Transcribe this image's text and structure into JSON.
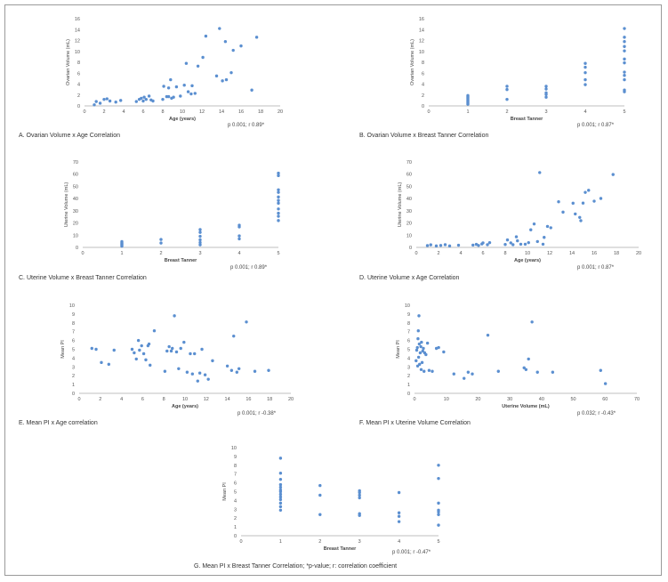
{
  "figure": {
    "footnote": "G. Mean PI x Breast Tanner Correlation; *p-value; r: correlation coefficient"
  },
  "style": {
    "point_color": "#5b8fd0",
    "axis_color": "#bfbfbf",
    "text_color": "#555555"
  },
  "chart_data": [
    {
      "id": "A",
      "type": "scatter",
      "caption": "A. Ovarian Volume x Age Correlation",
      "stat": "p 0.001; r 0.89*",
      "xlabel": "Age (years)",
      "ylabel": "Ovarian Volume (mL)",
      "xlim": [
        0,
        20
      ],
      "ylim": [
        0,
        16
      ],
      "xticks": [
        0,
        2,
        4,
        6,
        8,
        10,
        12,
        14,
        16,
        18,
        20
      ],
      "yticks": [
        0,
        2,
        4,
        6,
        8,
        10,
        12,
        14,
        16
      ],
      "points": [
        [
          1,
          0.2
        ],
        [
          1.2,
          0.8
        ],
        [
          1.6,
          0.5
        ],
        [
          2,
          1.2
        ],
        [
          2.3,
          1.3
        ],
        [
          2.6,
          0.9
        ],
        [
          3.2,
          0.7
        ],
        [
          3.7,
          1
        ],
        [
          5.3,
          0.8
        ],
        [
          5.6,
          1.2
        ],
        [
          5.8,
          1.4
        ],
        [
          6,
          0.9
        ],
        [
          6.1,
          1.6
        ],
        [
          6.3,
          1.2
        ],
        [
          6.6,
          1.8
        ],
        [
          6.8,
          1.1
        ],
        [
          7,
          0.9
        ],
        [
          8,
          1.2
        ],
        [
          8.1,
          3.6
        ],
        [
          8.4,
          1.7
        ],
        [
          8.6,
          3.3
        ],
        [
          8.8,
          4.8
        ],
        [
          8.9,
          1.4
        ],
        [
          9.1,
          1.6
        ],
        [
          9.4,
          3.5
        ],
        [
          9.8,
          1.8
        ],
        [
          10.2,
          3.8
        ],
        [
          10.4,
          7.8
        ],
        [
          10.6,
          2.6
        ],
        [
          10.9,
          2.2
        ],
        [
          11,
          3.7
        ],
        [
          11.3,
          2.3
        ],
        [
          11.6,
          7.3
        ],
        [
          12.1,
          8.9
        ],
        [
          12.4,
          12.8
        ],
        [
          13.5,
          5.5
        ],
        [
          13.8,
          14.2
        ],
        [
          14.1,
          4.6
        ],
        [
          14.4,
          11.8
        ],
        [
          15,
          6.1
        ],
        [
          15.2,
          10.2
        ],
        [
          16,
          11
        ],
        [
          17.1,
          2.9
        ],
        [
          17.6,
          12.6
        ],
        [
          14.5,
          4.8
        ],
        [
          8.6,
          1.7
        ]
      ]
    },
    {
      "id": "B",
      "type": "scatter",
      "caption": "B. Ovarian Volume x Breast Tanner Correlation",
      "stat": "p 0.001; r 0.87*",
      "xlabel": "Breast Tanner",
      "ylabel": "Ovarian Volume (mL)",
      "xlim": [
        0,
        5
      ],
      "ylim": [
        0,
        16
      ],
      "xticks": [
        0,
        1,
        2,
        3,
        4,
        5
      ],
      "yticks": [
        0,
        2,
        4,
        6,
        8,
        10,
        12,
        14,
        16
      ],
      "points": [
        [
          1,
          0.3
        ],
        [
          1,
          0.5
        ],
        [
          1,
          0.7
        ],
        [
          1,
          0.9
        ],
        [
          1,
          1.1
        ],
        [
          1,
          1.3
        ],
        [
          1,
          1.5
        ],
        [
          1,
          1.7
        ],
        [
          1,
          1.9
        ],
        [
          2,
          1.2
        ],
        [
          2,
          3
        ],
        [
          2,
          3.6
        ],
        [
          3,
          1.6
        ],
        [
          3,
          2.1
        ],
        [
          3,
          2.4
        ],
        [
          3,
          3.1
        ],
        [
          3,
          3.6
        ],
        [
          4,
          3.9
        ],
        [
          4,
          4.8
        ],
        [
          4,
          6.1
        ],
        [
          4,
          7.1
        ],
        [
          4,
          7.8
        ],
        [
          5,
          2.6
        ],
        [
          5,
          2.9
        ],
        [
          5,
          4.8
        ],
        [
          5,
          5.6
        ],
        [
          5,
          6.2
        ],
        [
          5,
          7.9
        ],
        [
          5,
          8.6
        ],
        [
          5,
          10.1
        ],
        [
          5,
          10.9
        ],
        [
          5,
          11.8
        ],
        [
          5,
          12.6
        ],
        [
          5,
          14.2
        ]
      ]
    },
    {
      "id": "C",
      "type": "scatter",
      "caption": "C. Uterine Volume x Breast Tanner Correlation",
      "stat": "p 0.001; r 0.89*",
      "xlabel": "Breast Tanner",
      "ylabel": "Uterine Volume (mL)",
      "xlim": [
        0,
        5
      ],
      "ylim": [
        0,
        70
      ],
      "xticks": [
        0,
        1,
        2,
        3,
        4,
        5
      ],
      "yticks": [
        0,
        10,
        20,
        30,
        40,
        50,
        60,
        70
      ],
      "points": [
        [
          1,
          1
        ],
        [
          1,
          1.8
        ],
        [
          1,
          2.5
        ],
        [
          1,
          3.2
        ],
        [
          1,
          4
        ],
        [
          1,
          4.8
        ],
        [
          2,
          3.6
        ],
        [
          2,
          6.5
        ],
        [
          3,
          2.1
        ],
        [
          3,
          4
        ],
        [
          3,
          6.2
        ],
        [
          3,
          9.1
        ],
        [
          3,
          12.3
        ],
        [
          3,
          14.6
        ],
        [
          4,
          7
        ],
        [
          4,
          9.4
        ],
        [
          4,
          16.8
        ],
        [
          4,
          18.2
        ],
        [
          5,
          22
        ],
        [
          5,
          25.5
        ],
        [
          5,
          28
        ],
        [
          5,
          31.5
        ],
        [
          5,
          36.2
        ],
        [
          5,
          38.5
        ],
        [
          5,
          41.3
        ],
        [
          5,
          45.1
        ],
        [
          5,
          47.2
        ],
        [
          5,
          58.8
        ],
        [
          5,
          60.8
        ]
      ]
    },
    {
      "id": "D",
      "type": "scatter",
      "caption": "D. Uterine Volume x Age Correlation",
      "stat": "p 0.001; r 0.87*",
      "xlabel": "Age (years)",
      "ylabel": "Uterine Volume (mL)",
      "xlim": [
        0,
        20
      ],
      "ylim": [
        0,
        70
      ],
      "xticks": [
        0,
        2,
        4,
        6,
        8,
        10,
        12,
        14,
        16,
        18,
        20
      ],
      "yticks": [
        0,
        10,
        20,
        30,
        40,
        50,
        60,
        70
      ],
      "points": [
        [
          1,
          1.5
        ],
        [
          1.3,
          2.1
        ],
        [
          1.8,
          1.2
        ],
        [
          2.2,
          1.6
        ],
        [
          2.6,
          2.2
        ],
        [
          3,
          1.2
        ],
        [
          3.8,
          1.8
        ],
        [
          5.1,
          1.9
        ],
        [
          5.4,
          2.5
        ],
        [
          5.6,
          1.6
        ],
        [
          5.9,
          2.8
        ],
        [
          6,
          3.7
        ],
        [
          6.4,
          2.2
        ],
        [
          6.6,
          3.9
        ],
        [
          8,
          2.4
        ],
        [
          8.2,
          6.1
        ],
        [
          8.5,
          3.7
        ],
        [
          8.7,
          2.2
        ],
        [
          9,
          8.7
        ],
        [
          9.1,
          5.4
        ],
        [
          9.4,
          2.6
        ],
        [
          9.8,
          2.6
        ],
        [
          10.1,
          3.9
        ],
        [
          10.3,
          14.4
        ],
        [
          10.6,
          19.2
        ],
        [
          10.9,
          4.8
        ],
        [
          11.1,
          61.3
        ],
        [
          11.4,
          2.6
        ],
        [
          11.5,
          8.2
        ],
        [
          11.8,
          17.2
        ],
        [
          12.1,
          16.1
        ],
        [
          12.8,
          37.4
        ],
        [
          13.2,
          28.9
        ],
        [
          14.1,
          36.2
        ],
        [
          14.3,
          27.4
        ],
        [
          14.7,
          24.6
        ],
        [
          14.8,
          21.9
        ],
        [
          15,
          36.3
        ],
        [
          15.2,
          45.1
        ],
        [
          15.5,
          46.8
        ],
        [
          16,
          37.9
        ],
        [
          16.6,
          40.1
        ],
        [
          17.7,
          59.7
        ]
      ]
    },
    {
      "id": "E",
      "type": "scatter",
      "caption": "E. Mean PI x Age correlation",
      "stat": "p 0.001; r -0.38*",
      "xlabel": "Age (years)",
      "ylabel": "Mean PI",
      "xlim": [
        0,
        20
      ],
      "ylim": [
        0,
        10
      ],
      "xticks": [
        0,
        2,
        4,
        6,
        8,
        10,
        12,
        14,
        16,
        18,
        20
      ],
      "yticks": [
        0,
        1,
        2,
        3,
        4,
        5,
        6,
        7,
        8,
        9,
        10
      ],
      "points": [
        [
          1.2,
          5.1
        ],
        [
          1.6,
          5
        ],
        [
          2.1,
          3.5
        ],
        [
          2.8,
          3.3
        ],
        [
          3.3,
          4.9
        ],
        [
          5,
          5
        ],
        [
          5.2,
          4.6
        ],
        [
          5.4,
          3.9
        ],
        [
          5.6,
          6
        ],
        [
          5.7,
          4.9
        ],
        [
          5.9,
          5.4
        ],
        [
          6.1,
          4.5
        ],
        [
          6.3,
          3.8
        ],
        [
          6.5,
          5.4
        ],
        [
          6.6,
          5.6
        ],
        [
          6.7,
          3.2
        ],
        [
          7.1,
          7.1
        ],
        [
          8.1,
          2.5
        ],
        [
          8.3,
          4.8
        ],
        [
          8.5,
          5.3
        ],
        [
          8.7,
          4.8
        ],
        [
          8.8,
          5.1
        ],
        [
          9,
          8.8
        ],
        [
          9.2,
          4.7
        ],
        [
          9.4,
          2.8
        ],
        [
          9.6,
          5.1
        ],
        [
          9.9,
          5.8
        ],
        [
          10.2,
          2.4
        ],
        [
          10.5,
          4.5
        ],
        [
          10.7,
          2.2
        ],
        [
          10.9,
          4.5
        ],
        [
          11.2,
          1.4
        ],
        [
          11.4,
          2.3
        ],
        [
          11.6,
          5
        ],
        [
          11.9,
          2.1
        ],
        [
          12.2,
          1.6
        ],
        [
          12.6,
          3.7
        ],
        [
          14,
          3.1
        ],
        [
          14.4,
          2.6
        ],
        [
          14.6,
          6.5
        ],
        [
          14.9,
          2.4
        ],
        [
          15.1,
          2.8
        ],
        [
          15.8,
          8.1
        ],
        [
          16.6,
          2.5
        ],
        [
          17.9,
          2.6
        ]
      ]
    },
    {
      "id": "F",
      "type": "scatter",
      "caption": "F. Mean PI x Uterine Volume Correlation",
      "stat": "p 0.032; r -0.43*",
      "xlabel": "Uterine Volume (mL)",
      "ylabel": "Mean PI",
      "xlim": [
        0,
        70
      ],
      "ylim": [
        0,
        10
      ],
      "xticks": [
        0,
        10,
        20,
        30,
        40,
        50,
        60,
        70
      ],
      "yticks": [
        0,
        1,
        2,
        3,
        4,
        5,
        6,
        7,
        8,
        9,
        10
      ],
      "points": [
        [
          0.5,
          3.7
        ],
        [
          0.7,
          4.9
        ],
        [
          0.9,
          5.2
        ],
        [
          1,
          3.1
        ],
        [
          1.1,
          6.2
        ],
        [
          1.2,
          7.1
        ],
        [
          1.3,
          4.1
        ],
        [
          1.4,
          8.8
        ],
        [
          1.5,
          5.6
        ],
        [
          1.6,
          3.3
        ],
        [
          1.8,
          4.6
        ],
        [
          2,
          5.3
        ],
        [
          2.1,
          2.7
        ],
        [
          2.2,
          5.8
        ],
        [
          2.4,
          3.5
        ],
        [
          2.6,
          4.8
        ],
        [
          2.8,
          5.1
        ],
        [
          3,
          2.5
        ],
        [
          3.2,
          4.6
        ],
        [
          3.6,
          4.4
        ],
        [
          4.1,
          5.7
        ],
        [
          4.6,
          2.6
        ],
        [
          5.6,
          2.5
        ],
        [
          6.9,
          5.1
        ],
        [
          7.6,
          5.2
        ],
        [
          9.2,
          4.7
        ],
        [
          12.4,
          2.2
        ],
        [
          15.6,
          1.7
        ],
        [
          16.9,
          2.4
        ],
        [
          18.2,
          2.2
        ],
        [
          23.1,
          6.6
        ],
        [
          26.4,
          2.5
        ],
        [
          34.5,
          2.9
        ],
        [
          35.1,
          2.7
        ],
        [
          35.9,
          3.9
        ],
        [
          37,
          8.1
        ],
        [
          38.7,
          2.4
        ],
        [
          43.5,
          2.4
        ],
        [
          58.6,
          2.6
        ],
        [
          60.1,
          1.1
        ]
      ]
    },
    {
      "id": "G",
      "type": "scatter",
      "caption": "",
      "stat": "p 0.001; r -0.47*",
      "xlabel": "Breast Tanner",
      "ylabel": "Mean PI",
      "xlim": [
        0,
        5
      ],
      "ylim": [
        0,
        10
      ],
      "xticks": [
        0,
        1,
        2,
        3,
        4,
        5
      ],
      "yticks": [
        0,
        1,
        2,
        3,
        4,
        5,
        6,
        7,
        8,
        9,
        10
      ],
      "points": [
        [
          1,
          2.9
        ],
        [
          1,
          3.3
        ],
        [
          1,
          3.7
        ],
        [
          1,
          4.1
        ],
        [
          1,
          4.4
        ],
        [
          1,
          4.7
        ],
        [
          1,
          5
        ],
        [
          1,
          5.2
        ],
        [
          1,
          5.5
        ],
        [
          1,
          5.8
        ],
        [
          1,
          6.4
        ],
        [
          1,
          7.1
        ],
        [
          1,
          8.8
        ],
        [
          2,
          2.4
        ],
        [
          2,
          4.6
        ],
        [
          2,
          5.7
        ],
        [
          3,
          2.3
        ],
        [
          3,
          2.5
        ],
        [
          3,
          4.3
        ],
        [
          3,
          4.6
        ],
        [
          3,
          4.9
        ],
        [
          3,
          5.1
        ],
        [
          4,
          1.6
        ],
        [
          4,
          2.2
        ],
        [
          4,
          2.6
        ],
        [
          4,
          4.9
        ],
        [
          5,
          1.2
        ],
        [
          5,
          2.4
        ],
        [
          5,
          2.7
        ],
        [
          5,
          2.9
        ],
        [
          5,
          3.7
        ],
        [
          5,
          6.5
        ],
        [
          5,
          8
        ]
      ]
    }
  ]
}
